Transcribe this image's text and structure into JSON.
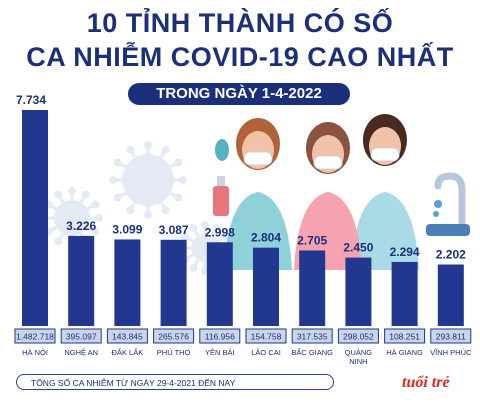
{
  "header": {
    "title_line1": "10 TỈNH THÀNH CÓ SỐ",
    "title_line2": "CA NHIỄM COVID-19 CAO NHẤT",
    "subtitle": "TRONG NGÀY 1-4-2022"
  },
  "footnote": "TỔNG SỐ CA NHIỄM TỪ NGÀY 29-4-2021 ĐẾN NAY",
  "logo": "tuổi trẻ",
  "colors": {
    "title": "#1b2f7a",
    "bar": "#22378f",
    "total_box_fill": "#c9d5ea",
    "total_box_border": "#1f3687",
    "virus": "#e4eaf3"
  },
  "chart_data": {
    "type": "bar",
    "categories": [
      "HÀ NỘI",
      "NGHỆ AN",
      "ĐẮK LẮK",
      "PHÚ THỌ",
      "YÊN BÁI",
      "LÀO CAI",
      "BẮC GIANG",
      "QUẢNG NINH",
      "HÀ GIANG",
      "VĨNH PHÚC"
    ],
    "category_lines": [
      [
        "HÀ NỘI"
      ],
      [
        "NGHỆ AN"
      ],
      [
        "ĐẮK LẮK"
      ],
      [
        "PHÚ THỌ"
      ],
      [
        "YÊN BÁI"
      ],
      [
        "LÀO CAI"
      ],
      [
        "BẮC GIANG"
      ],
      [
        "QUẢNG",
        "NINH"
      ],
      [
        "HÀ GIANG"
      ],
      [
        "VĨNH PHÚC"
      ]
    ],
    "series": [
      {
        "values": [
          7734,
          3226,
          3099,
          3087,
          2998,
          2804,
          2705,
          2450,
          2294,
          2202
        ]
      }
    ],
    "value_labels": [
      "7.734",
      "3.226",
      "3.099",
      "3.087",
      "2.998",
      "2.804",
      "2.705",
      "2.450",
      "2.294",
      "2.202"
    ],
    "totals": [
      "1.482.718",
      "395.097",
      "143.845",
      "265.576",
      "116.956",
      "154.758",
      "317.535",
      "298.052",
      "108.251",
      "293.811"
    ],
    "ylim": [
      0,
      7734
    ],
    "grid": false,
    "legend": "none"
  }
}
